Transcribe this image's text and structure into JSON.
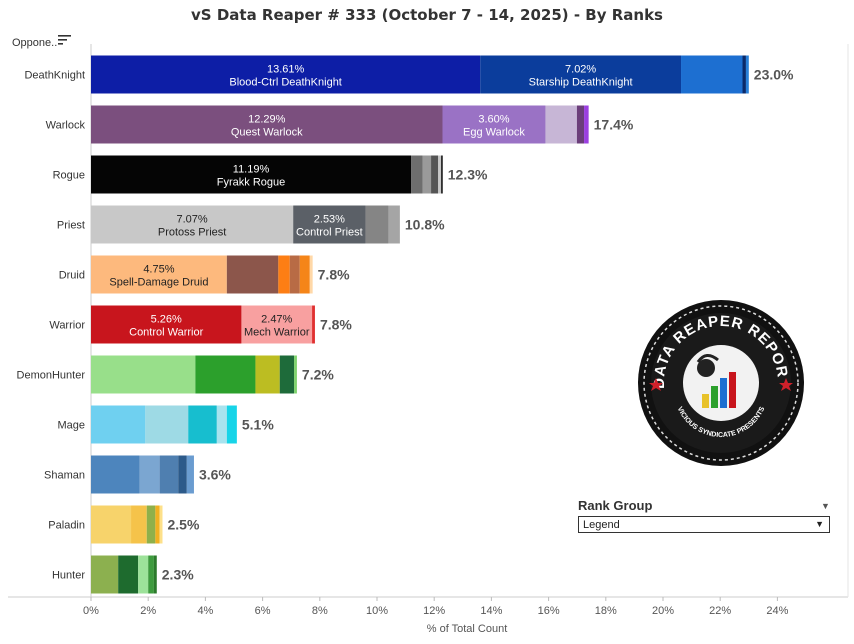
{
  "title": "vS Data Reaper #  333 (October 7 - 14, 2025) - By Ranks",
  "sort_label": "Oppone..",
  "rank_filter": {
    "title": "Rank Group",
    "value": "Legend"
  },
  "logo": {
    "text_top": "DATA REAPER REPORT",
    "text_bottom": "VICIOUS SYNDICATE PRESENTS"
  },
  "colors": {
    "bar_label_bg": "#ffffff",
    "axis": "#cccccc",
    "total_label": "#555555"
  },
  "chart_data": {
    "type": "bar",
    "orientation": "horizontal",
    "stacked": true,
    "xlabel": "% of Total Count",
    "x_ticks": [
      "0%",
      "2%",
      "4%",
      "6%",
      "8%",
      "10%",
      "12%",
      "14%",
      "16%",
      "18%",
      "20%",
      "22%",
      "24%"
    ],
    "xlim": [
      0,
      24
    ],
    "rows": [
      {
        "category": "DeathKnight",
        "total": "23.0%",
        "segments": [
          {
            "value": 13.61,
            "color": "#0d1ea6",
            "label_value": "13.61%",
            "label_name": "Blood-Ctrl DeathKnight",
            "text": "#ffffff"
          },
          {
            "value": 7.02,
            "color": "#0b3d9c",
            "label_value": "7.02%",
            "label_name": "Starship DeathKnight",
            "text": "#ffffff"
          },
          {
            "value": 2.15,
            "color": "#1d6fd1"
          },
          {
            "value": 0.12,
            "color": "#0a2a6b"
          },
          {
            "value": 0.1,
            "color": "#2980d9"
          }
        ]
      },
      {
        "category": "Warlock",
        "total": "17.4%",
        "segments": [
          {
            "value": 12.29,
            "color": "#7b4f7e",
            "label_value": "12.29%",
            "label_name": "Quest Warlock",
            "text": "#ffffff"
          },
          {
            "value": 3.6,
            "color": "#9a72c5",
            "label_value": "3.60%",
            "label_name": "Egg Warlock",
            "text": "#ffffff"
          },
          {
            "value": 1.1,
            "color": "#c7b6d6"
          },
          {
            "value": 0.25,
            "color": "#6b3e7a"
          },
          {
            "value": 0.16,
            "color": "#9b3fe0"
          }
        ]
      },
      {
        "category": "Rogue",
        "total": "12.3%",
        "segments": [
          {
            "value": 11.19,
            "color": "#050505",
            "label_value": "11.19%",
            "label_name": "Fyrakk Rogue",
            "text": "#ffffff"
          },
          {
            "value": 0.4,
            "color": "#6e6e6e"
          },
          {
            "value": 0.3,
            "color": "#9a9a9a"
          },
          {
            "value": 0.25,
            "color": "#555555"
          },
          {
            "value": 0.1,
            "color": "#c8c8c8"
          },
          {
            "value": 0.06,
            "color": "#222222"
          }
        ]
      },
      {
        "category": "Priest",
        "total": "10.8%",
        "segments": [
          {
            "value": 7.07,
            "color": "#c8c8c8",
            "label_value": "7.07%",
            "label_name": "Protoss Priest",
            "text": "#222222"
          },
          {
            "value": 2.53,
            "color": "#5b6067",
            "label_value": "2.53%",
            "label_name": "Control Priest",
            "text": "#ffffff"
          },
          {
            "value": 0.8,
            "color": "#858585"
          },
          {
            "value": 0.4,
            "color": "#a5a5a5"
          }
        ]
      },
      {
        "category": "Druid",
        "total": "7.8%",
        "segments": [
          {
            "value": 4.75,
            "color": "#fdb97d",
            "label_value": "4.75%",
            "label_name": "Spell-Damage Druid",
            "text": "#222222"
          },
          {
            "value": 1.8,
            "color": "#8c564b"
          },
          {
            "value": 0.4,
            "color": "#fd7e14"
          },
          {
            "value": 0.35,
            "color": "#b86b45"
          },
          {
            "value": 0.35,
            "color": "#f58518"
          },
          {
            "value": 0.1,
            "color": "#ffd8a8"
          }
        ]
      },
      {
        "category": "Warrior",
        "total": "7.8%",
        "segments": [
          {
            "value": 5.26,
            "color": "#c8151d",
            "label_value": "5.26%",
            "label_name": "Control Warrior",
            "text": "#ffffff"
          },
          {
            "value": 2.47,
            "color": "#f8a0a0",
            "label_value": "2.47%",
            "label_name": "Mech Warrior",
            "text": "#222222"
          },
          {
            "value": 0.1,
            "color": "#e03030"
          }
        ]
      },
      {
        "category": "DemonHunter",
        "total": "7.2%",
        "segments": [
          {
            "value": 3.65,
            "color": "#98df8a"
          },
          {
            "value": 2.1,
            "color": "#2ca02c"
          },
          {
            "value": 0.85,
            "color": "#bcbd22"
          },
          {
            "value": 0.5,
            "color": "#1e6b3a"
          },
          {
            "value": 0.1,
            "color": "#7fd36e"
          }
        ]
      },
      {
        "category": "Mage",
        "total": "5.1%",
        "segments": [
          {
            "value": 1.9,
            "color": "#6fd0f0"
          },
          {
            "value": 1.5,
            "color": "#9edae5"
          },
          {
            "value": 1.0,
            "color": "#17becf"
          },
          {
            "value": 0.35,
            "color": "#a8e3ee"
          },
          {
            "value": 0.35,
            "color": "#17d4e8"
          }
        ]
      },
      {
        "category": "Shaman",
        "total": "3.6%",
        "segments": [
          {
            "value": 1.7,
            "color": "#4d85bd"
          },
          {
            "value": 0.7,
            "color": "#7ba6d1"
          },
          {
            "value": 0.65,
            "color": "#4f7fb0"
          },
          {
            "value": 0.3,
            "color": "#2c5a8a"
          },
          {
            "value": 0.25,
            "color": "#6a9cd0"
          }
        ]
      },
      {
        "category": "Paladin",
        "total": "2.5%",
        "segments": [
          {
            "value": 1.4,
            "color": "#f7d36b"
          },
          {
            "value": 0.55,
            "color": "#f5c34a"
          },
          {
            "value": 0.3,
            "color": "#8fb04a"
          },
          {
            "value": 0.15,
            "color": "#f0b020"
          },
          {
            "value": 0.1,
            "color": "#fde08a"
          }
        ]
      },
      {
        "category": "Hunter",
        "total": "2.3%",
        "segments": [
          {
            "value": 0.95,
            "color": "#8cb04f"
          },
          {
            "value": 0.7,
            "color": "#1e6b2e"
          },
          {
            "value": 0.35,
            "color": "#9de29a"
          },
          {
            "value": 0.2,
            "color": "#3e9b3e"
          },
          {
            "value": 0.1,
            "color": "#2c7a2c"
          }
        ]
      }
    ]
  }
}
